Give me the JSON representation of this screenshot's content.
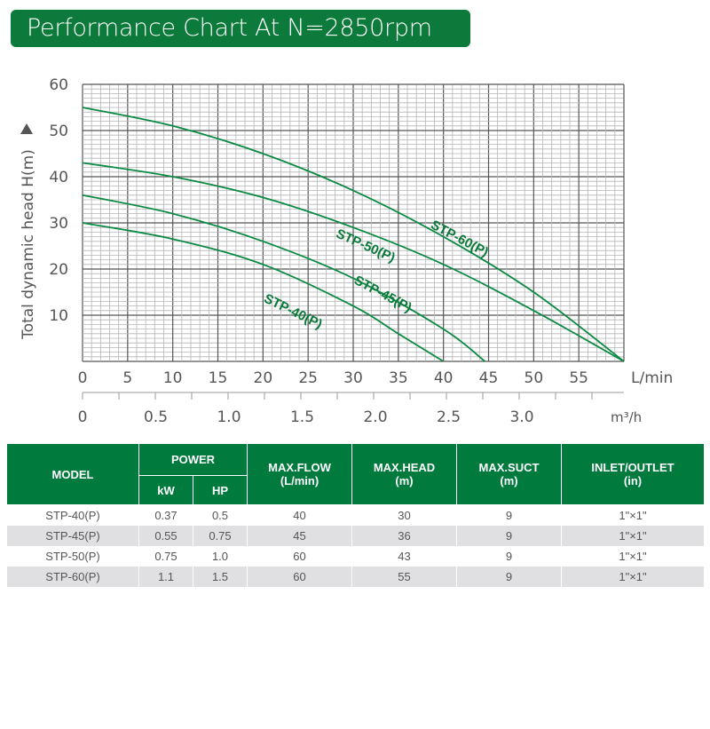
{
  "title": "Performance Chart At N=2850rpm",
  "chart_data": {
    "type": "line",
    "title": "Performance Chart At N=2850rpm",
    "ylabel": "Total dynamic head H(m)",
    "xlabel": "L/min",
    "x2label": "m³/h",
    "xlim": [
      0,
      60
    ],
    "ylim": [
      0,
      60
    ],
    "xticks": [
      0,
      5,
      10,
      15,
      20,
      25,
      30,
      35,
      40,
      45,
      50,
      55
    ],
    "yticks": [
      10,
      20,
      30,
      40,
      50,
      60
    ],
    "x2ticks": [
      "0",
      "0.5",
      "1.0",
      "1.5",
      "2.0",
      "2.5",
      "3.0"
    ],
    "grid": true,
    "line_color": "#0a8a42",
    "series": [
      {
        "name": "STP-60(P)",
        "x": [
          0,
          10,
          20,
          30,
          40,
          50,
          60
        ],
        "y": [
          55,
          51,
          45,
          37,
          27,
          15,
          0
        ]
      },
      {
        "name": "STP-50(P)",
        "x": [
          0,
          10,
          20,
          30,
          40,
          50,
          60
        ],
        "y": [
          43,
          40,
          35.5,
          29,
          21,
          11,
          0
        ]
      },
      {
        "name": "STP-45(P)",
        "x": [
          0,
          10,
          20,
          30,
          40,
          44.6
        ],
        "y": [
          36,
          32,
          26,
          18,
          7,
          0
        ]
      },
      {
        "name": "STP-40(P)",
        "x": [
          0,
          10,
          20,
          30,
          35,
          40
        ],
        "y": [
          30,
          26.5,
          21,
          12,
          6,
          0
        ]
      }
    ]
  },
  "table": {
    "headers": {
      "model": "MODEL",
      "power": "POWER",
      "kw": "kW",
      "hp": "HP",
      "flow": "MAX.FLOW",
      "flow_unit": "(L/min)",
      "head": "MAX.HEAD",
      "head_unit": "(m)",
      "suct": "MAX.SUCT",
      "suct_unit": "(m)",
      "io": "INLET/OUTLET",
      "io_unit": "(in)"
    },
    "rows": [
      [
        "STP-40(P)",
        "0.37",
        "0.5",
        "40",
        "30",
        "9",
        "1\"×1\""
      ],
      [
        "STP-45(P)",
        "0.55",
        "0.75",
        "45",
        "36",
        "9",
        "1\"×1\""
      ],
      [
        "STP-50(P)",
        "0.75",
        "1.0",
        "60",
        "43",
        "9",
        "1\"×1\""
      ],
      [
        "STP-60(P)",
        "1.1",
        "1.5",
        "60",
        "55",
        "9",
        "1\"×1\""
      ]
    ]
  }
}
